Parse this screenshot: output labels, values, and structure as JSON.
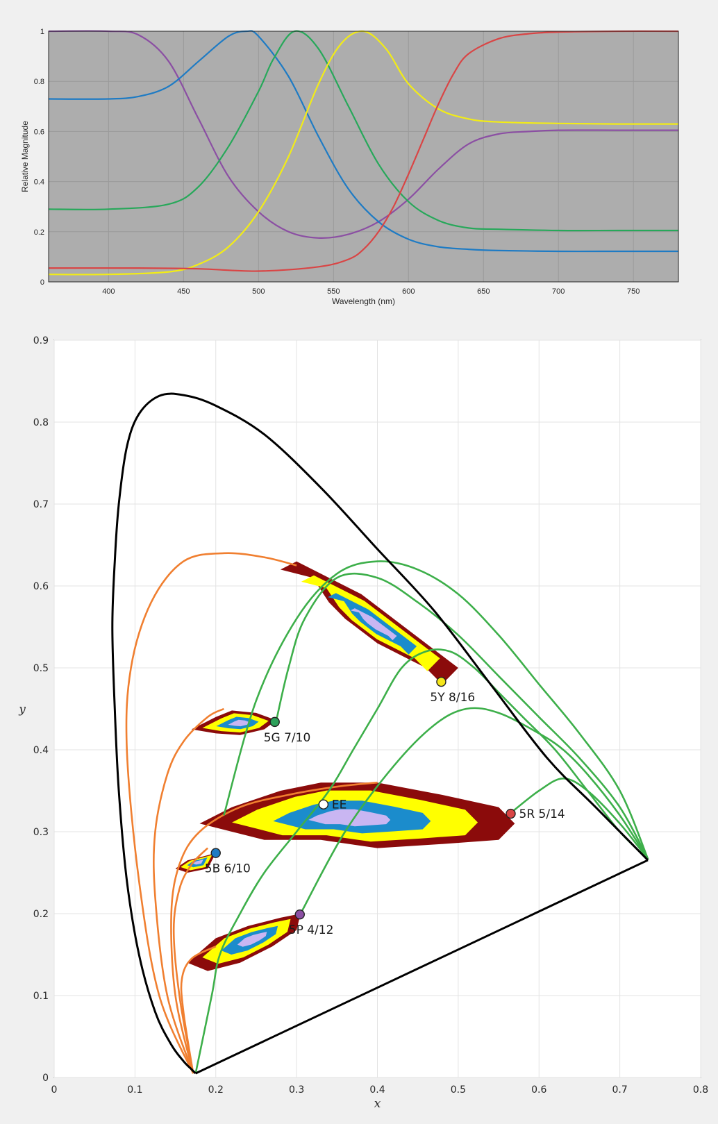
{
  "chart_data": [
    {
      "type": "line",
      "xlabel": "Wavelength (nm)",
      "ylabel": "Relative Magnitude",
      "xlim": [
        360,
        780
      ],
      "ylim": [
        0,
        1
      ],
      "xticks": [
        400,
        450,
        500,
        550,
        600,
        650,
        700,
        750
      ],
      "yticks": [
        0,
        0.2,
        0.4,
        0.6,
        0.8,
        1
      ],
      "ytick_labels": [
        "0",
        "0.2",
        "0.4",
        "0.6",
        "0.8",
        "1"
      ],
      "background": "#adadad",
      "grid": true,
      "series": [
        {
          "color": "#8b4fa3",
          "x": [
            360,
            400,
            420,
            440,
            460,
            480,
            500,
            520,
            540,
            560,
            580,
            600,
            620,
            640,
            660,
            680,
            700,
            740,
            780
          ],
          "y": [
            1.0,
            1.0,
            0.985,
            0.88,
            0.65,
            0.42,
            0.28,
            0.2,
            0.175,
            0.19,
            0.24,
            0.33,
            0.45,
            0.55,
            0.59,
            0.6,
            0.605,
            0.605,
            0.605
          ]
        },
        {
          "color": "#1e7bc4",
          "x": [
            360,
            400,
            420,
            440,
            460,
            480,
            492,
            500,
            520,
            540,
            560,
            580,
            600,
            620,
            640,
            660,
            700,
            740,
            780
          ],
          "y": [
            0.73,
            0.73,
            0.74,
            0.78,
            0.88,
            0.98,
            1.0,
            0.98,
            0.82,
            0.58,
            0.37,
            0.24,
            0.17,
            0.14,
            0.13,
            0.125,
            0.122,
            0.122,
            0.122
          ]
        },
        {
          "color": "#27a85a",
          "x": [
            360,
            400,
            440,
            460,
            480,
            500,
            510,
            524,
            540,
            560,
            580,
            600,
            620,
            640,
            660,
            700,
            740,
            780
          ],
          "y": [
            0.29,
            0.29,
            0.31,
            0.38,
            0.54,
            0.76,
            0.89,
            1.0,
            0.93,
            0.7,
            0.47,
            0.32,
            0.245,
            0.215,
            0.21,
            0.205,
            0.205,
            0.205
          ]
        },
        {
          "color": "#f2ec16",
          "x": [
            360,
            400,
            440,
            460,
            480,
            500,
            520,
            540,
            555,
            570,
            585,
            600,
            620,
            640,
            660,
            700,
            740,
            780
          ],
          "y": [
            0.03,
            0.03,
            0.04,
            0.07,
            0.14,
            0.28,
            0.5,
            0.79,
            0.95,
            1.0,
            0.93,
            0.79,
            0.69,
            0.65,
            0.638,
            0.632,
            0.63,
            0.63
          ]
        },
        {
          "color": "#d94545",
          "x": [
            360,
            420,
            460,
            500,
            540,
            560,
            570,
            580,
            590,
            600,
            610,
            620,
            630,
            640,
            660,
            680,
            700,
            740,
            780
          ],
          "y": [
            0.055,
            0.055,
            0.052,
            0.043,
            0.06,
            0.09,
            0.13,
            0.2,
            0.3,
            0.43,
            0.57,
            0.71,
            0.83,
            0.91,
            0.97,
            0.99,
            0.997,
            1.0,
            1.0
          ]
        }
      ]
    },
    {
      "type": "line",
      "xlabel": "x",
      "ylabel": "y",
      "xlim": [
        0,
        0.8
      ],
      "ylim": [
        0,
        0.9
      ],
      "xticks": [
        0,
        0.1,
        0.2,
        0.3,
        0.4,
        0.5,
        0.6,
        0.7,
        0.8
      ],
      "xtick_labels": [
        "0",
        "0.1",
        "0.2",
        "0.3",
        "0.4",
        "0.5",
        "0.6",
        "0.7",
        "0.8"
      ],
      "yticks": [
        0,
        0.1,
        0.2,
        0.3,
        0.4,
        0.5,
        0.6,
        0.7,
        0.8,
        0.9
      ],
      "ytick_labels": [
        "0",
        "0.1",
        "0.2",
        "0.3",
        "0.4",
        "0.5",
        "0.6",
        "0.7",
        "0.8",
        "0.9"
      ],
      "background": "#ffffff",
      "grid": true,
      "spectral_locus": {
        "color": "#000000",
        "x": [
          0.175,
          0.17,
          0.16,
          0.145,
          0.125,
          0.105,
          0.09,
          0.08,
          0.075,
          0.072,
          0.075,
          0.08,
          0.09,
          0.105,
          0.13,
          0.16,
          0.2,
          0.26,
          0.33,
          0.4,
          0.47,
          0.54,
          0.61,
          0.67,
          0.7347
        ],
        "y": [
          0.005,
          0.01,
          0.02,
          0.04,
          0.08,
          0.15,
          0.24,
          0.35,
          0.45,
          0.55,
          0.63,
          0.7,
          0.77,
          0.81,
          0.832,
          0.833,
          0.82,
          0.785,
          0.72,
          0.645,
          0.57,
          0.48,
          0.39,
          0.33,
          0.2653
        ]
      },
      "purple_line": {
        "color": "#000000",
        "x": [
          0.175,
          0.7347
        ],
        "y": [
          0.005,
          0.2653
        ]
      },
      "orange_curves": {
        "color": "#f07f30",
        "curves": [
          {
            "x": [
              0.172,
              0.13,
              0.105,
              0.09,
              0.095,
              0.12,
              0.16,
              0.21,
              0.26,
              0.3
            ],
            "y": [
              0.005,
              0.1,
              0.24,
              0.4,
              0.5,
              0.58,
              0.63,
              0.64,
              0.635,
              0.625
            ]
          },
          {
            "x": [
              0.172,
              0.14,
              0.125,
              0.125,
              0.14,
              0.16,
              0.19,
              0.21
            ],
            "y": [
              0.005,
              0.1,
              0.22,
              0.3,
              0.37,
              0.41,
              0.44,
              0.45
            ]
          },
          {
            "x": [
              0.172,
              0.15,
              0.145,
              0.155,
              0.18,
              0.23,
              0.29,
              0.35,
              0.4
            ],
            "y": [
              0.005,
              0.1,
              0.2,
              0.26,
              0.3,
              0.33,
              0.345,
              0.355,
              0.36
            ]
          },
          {
            "x": [
              0.172,
              0.155,
              0.148,
              0.155,
              0.17,
              0.19
            ],
            "y": [
              0.005,
              0.1,
              0.18,
              0.23,
              0.26,
              0.28
            ]
          },
          {
            "x": [
              0.172,
              0.16,
              0.158,
              0.17,
              0.2
            ],
            "y": [
              0.005,
              0.08,
              0.12,
              0.145,
              0.16
            ]
          }
        ]
      },
      "green_curves": {
        "color": "#3daf4a",
        "curves": [
          {
            "x": [
              0.175,
              0.195,
              0.205,
              0.23,
              0.26,
              0.3,
              0.34,
              0.37,
              0.4,
              0.43,
              0.46,
              0.49,
              0.52,
              0.55,
              0.58,
              0.62,
              0.66,
              0.7,
              0.735
            ],
            "y": [
              0.005,
              0.1,
              0.15,
              0.2,
              0.25,
              0.3,
              0.35,
              0.4,
              0.45,
              0.5,
              0.52,
              0.52,
              0.5,
              0.47,
              0.44,
              0.4,
              0.35,
              0.3,
              0.266
            ]
          },
          {
            "x": [
              0.21,
              0.25,
              0.3,
              0.35,
              0.4,
              0.45,
              0.5,
              0.55,
              0.6,
              0.65,
              0.7,
              0.735
            ],
            "y": [
              0.32,
              0.46,
              0.56,
              0.615,
              0.63,
              0.62,
              0.59,
              0.54,
              0.48,
              0.42,
              0.35,
              0.266
            ]
          },
          {
            "x": [
              0.275,
              0.29,
              0.31,
              0.35,
              0.4,
              0.45,
              0.5,
              0.55,
              0.6,
              0.65,
              0.7,
              0.735
            ],
            "y": [
              0.436,
              0.5,
              0.56,
              0.61,
              0.61,
              0.58,
              0.54,
              0.49,
              0.44,
              0.39,
              0.33,
              0.266
            ]
          },
          {
            "x": [
              0.305,
              0.36,
              0.42,
              0.47,
              0.51,
              0.55,
              0.6,
              0.63,
              0.66,
              0.7,
              0.735
            ],
            "y": [
              0.2,
              0.3,
              0.38,
              0.43,
              0.45,
              0.445,
              0.42,
              0.4,
              0.37,
              0.32,
              0.266
            ]
          },
          {
            "x": [
              0.565,
              0.6,
              0.63,
              0.66,
              0.7,
              0.735
            ],
            "y": [
              0.323,
              0.35,
              0.365,
              0.35,
              0.31,
              0.266
            ]
          }
        ]
      },
      "regions": [
        {
          "name": "5Y",
          "x": [
            0.48,
            0.46,
            0.44,
            0.4,
            0.36,
            0.34,
            0.32,
            0.28,
            0.3,
            0.34,
            0.38,
            0.42,
            0.46,
            0.5,
            0.48
          ],
          "y": [
            0.48,
            0.5,
            0.51,
            0.53,
            0.56,
            0.58,
            0.61,
            0.62,
            0.63,
            0.61,
            0.59,
            0.56,
            0.53,
            0.5,
            0.48
          ]
        },
        {
          "name": "5G",
          "x": [
            0.275,
            0.25,
            0.22,
            0.2,
            0.17,
            0.2,
            0.23,
            0.26,
            0.275
          ],
          "y": [
            0.436,
            0.445,
            0.448,
            0.44,
            0.425,
            0.42,
            0.418,
            0.425,
            0.436
          ]
        },
        {
          "name": "EE",
          "x": [
            0.18,
            0.22,
            0.28,
            0.33,
            0.4,
            0.48,
            0.55,
            0.57,
            0.55,
            0.48,
            0.4,
            0.33,
            0.26,
            0.22,
            0.18
          ],
          "y": [
            0.31,
            0.33,
            0.35,
            0.36,
            0.36,
            0.345,
            0.33,
            0.31,
            0.29,
            0.285,
            0.28,
            0.29,
            0.29,
            0.3,
            0.31
          ]
        },
        {
          "name": "5B",
          "x": [
            0.2,
            0.185,
            0.165,
            0.15,
            0.165,
            0.19,
            0.2
          ],
          "y": [
            0.274,
            0.27,
            0.265,
            0.255,
            0.25,
            0.255,
            0.274
          ]
        },
        {
          "name": "5P",
          "x": [
            0.305,
            0.28,
            0.24,
            0.2,
            0.165,
            0.19,
            0.23,
            0.27,
            0.3,
            0.305
          ],
          "y": [
            0.2,
            0.195,
            0.185,
            0.17,
            0.14,
            0.13,
            0.14,
            0.16,
            0.18,
            0.2
          ]
        }
      ],
      "points": [
        {
          "label": "5Y 8/16",
          "x": 0.479,
          "y": 0.483,
          "color": "#f5e61a",
          "label_pos": "below"
        },
        {
          "label": "5G 7/10",
          "x": 0.273,
          "y": 0.434,
          "color": "#2ca05a",
          "label_pos": "below"
        },
        {
          "label": "EE",
          "x": 0.3333,
          "y": 0.3333,
          "color": "#ffffff",
          "label_pos": "right"
        },
        {
          "label": "5R 5/14",
          "x": 0.565,
          "y": 0.322,
          "color": "#d94545",
          "label_pos": "right"
        },
        {
          "label": "5B 6/10",
          "x": 0.2,
          "y": 0.274,
          "color": "#1e7bc4",
          "label_pos": "below"
        },
        {
          "label": "5P 4/12",
          "x": 0.304,
          "y": 0.199,
          "color": "#8b4fa3",
          "label_pos": "below"
        }
      ]
    }
  ]
}
